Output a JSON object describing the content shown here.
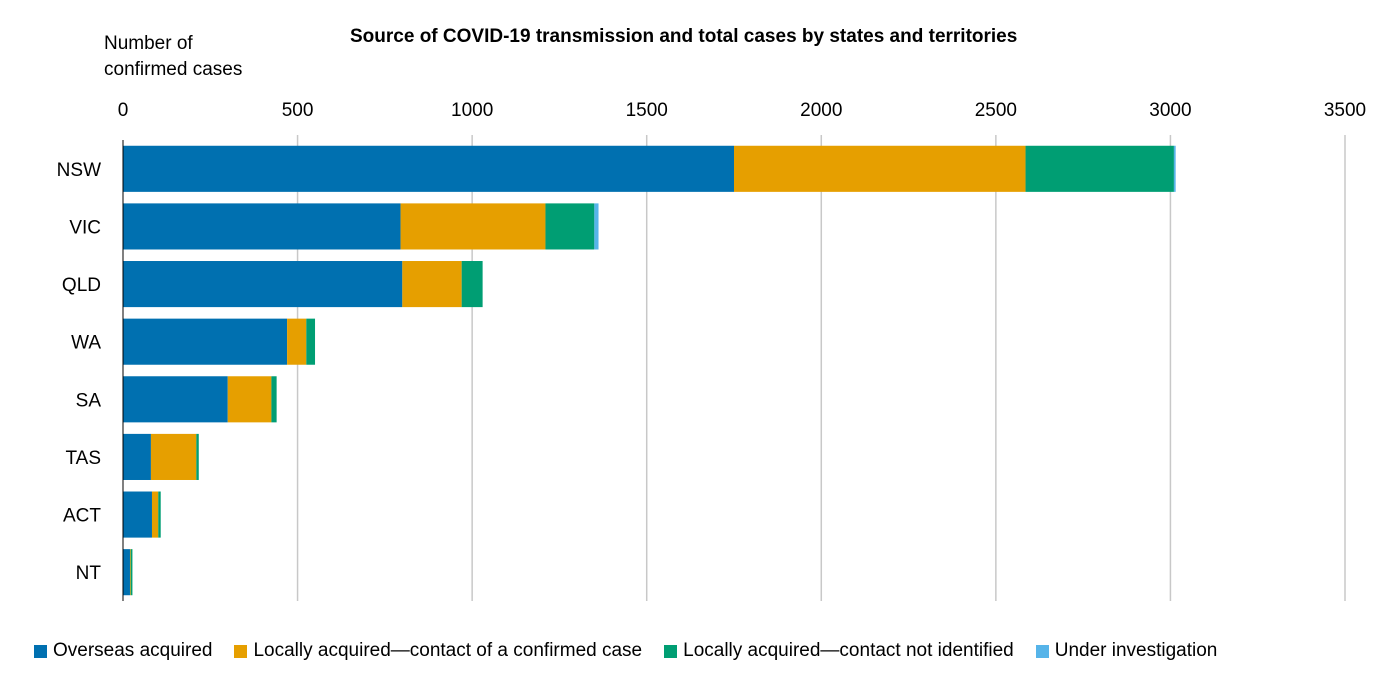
{
  "chart_data": {
    "type": "bar",
    "orientation": "horizontal",
    "stacked": true,
    "title": "Source of COVID-19 transmission and total cases by states and territories",
    "ylabel": "Number of confirmed cases",
    "xlabel": "",
    "categories": [
      "NSW",
      "VIC",
      "QLD",
      "WA",
      "SA",
      "TAS",
      "ACT",
      "NT"
    ],
    "series": [
      {
        "name": "Overseas acquired",
        "color": "#0070b0",
        "values": [
          1750,
          795,
          800,
          470,
          300,
          80,
          83,
          20
        ]
      },
      {
        "name": "Locally acquired—contact of a confirmed case",
        "color": "#e69f00",
        "values": [
          835,
          415,
          170,
          55,
          125,
          130,
          18,
          2
        ]
      },
      {
        "name": "Locally acquired—contact not identified",
        "color": "#009e73",
        "values": [
          425,
          140,
          60,
          25,
          15,
          7,
          7,
          5
        ]
      },
      {
        "name": "Under investigation",
        "color": "#56b4e9",
        "values": [
          5,
          12,
          0,
          0,
          0,
          0,
          0,
          0
        ]
      }
    ],
    "xlim": [
      0,
      3500
    ],
    "xticks": [
      0,
      500,
      1000,
      1500,
      2000,
      2500,
      3000,
      3500
    ],
    "grid": true,
    "legend_position": "bottom"
  }
}
